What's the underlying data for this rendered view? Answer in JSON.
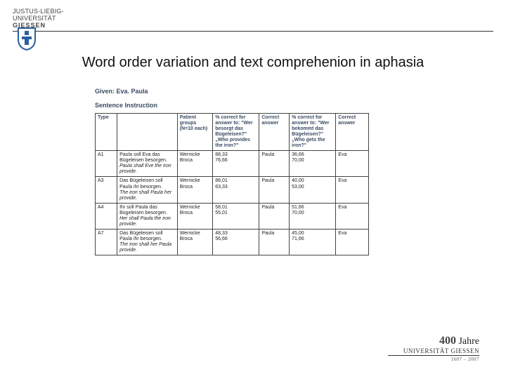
{
  "header": {
    "line1": "JUSTUS-LIEBIG-",
    "line2": "UNIVERSITÄT",
    "line3": "GIESSEN"
  },
  "title": "Word order variation and text comprehenion in aphasia",
  "given_label": "Given: Eva. Paula",
  "sentence_instruction_label": "Sentence Instruction",
  "table": {
    "columns": [
      "Type",
      "",
      "Patient groups (N=10 each)",
      "% correct for answer to: \"Wer besorgt das Bügeleisen?\" „Who provides the iron?\"",
      "Correct answer",
      "% correct for answer to: \"Wer bekommt das Bügeleisen?\" „Who gets the iron?\"",
      "Correct answer"
    ],
    "rows": [
      {
        "type": "A1",
        "sentence_de": "Paula soll Eva das Bügeleisen besorgen.",
        "sentence_en": "Paula shall Eve the iron provide.",
        "groups": [
          "Wernicke",
          "Broca"
        ],
        "pct1": [
          "88,33",
          "76,66"
        ],
        "ans1": "Paula",
        "pct2": [
          "36,66",
          "70,00"
        ],
        "ans2": "Eva"
      },
      {
        "type": "A3",
        "sentence_de": "Das Bügeleisen soll Paula ihr besorgen.",
        "sentence_en": "The iron shall Paula her provide.",
        "groups": [
          "Wernicke",
          "Broca"
        ],
        "pct1": [
          "88,01",
          "63,33"
        ],
        "ans1": "Paula",
        "pct2": [
          "40,00",
          "53,00"
        ],
        "ans2": "Eva"
      },
      {
        "type": "A4",
        "sentence_de": "Ihr soll Paula das Bügeleisen besorgen.",
        "sentence_en": "Her shall Paula the iron provide.",
        "groups": [
          "Wernicke",
          "Broca"
        ],
        "pct1": [
          "58,01",
          "55,01"
        ],
        "ans1": "Paula",
        "pct2": [
          "51,66",
          "70,00"
        ],
        "ans2": "Eva"
      },
      {
        "type": "A7",
        "sentence_de": "Das Bügeleisen soll Paula ihr besorgen.",
        "sentence_en": "The iron shall her Paula provide.",
        "groups": [
          "Wernicke",
          "Broca"
        ],
        "pct1": [
          "48,33",
          "56,66"
        ],
        "ans1": "Paula",
        "pct2": [
          "45,00",
          "71,66"
        ],
        "ans2": "Eva"
      }
    ]
  },
  "anniversary": {
    "top_num": "400",
    "top_word": "Jahre",
    "mid": "UNIVERSITÄT GIESSEN",
    "years": "1607 – 2007"
  },
  "colors": {
    "accent": "#3a4b63",
    "shield_border": "#2a5f9e",
    "shield_fill": "#ffffff"
  }
}
